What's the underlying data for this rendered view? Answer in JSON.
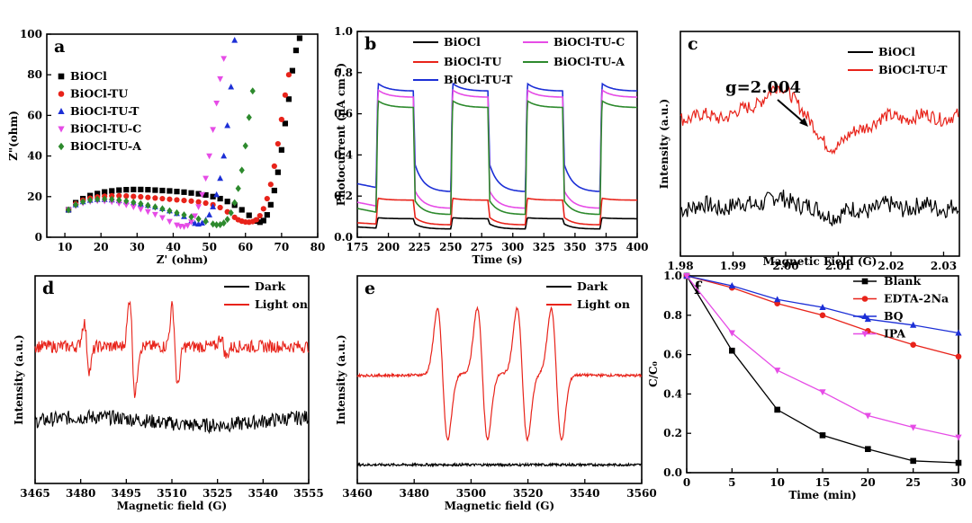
{
  "chart_data": [
    {
      "id": "a",
      "type": "scatter",
      "panel_label": "a",
      "xlabel": "Z' (ohm)",
      "ylabel": "Z\"(ohm)",
      "xlim": [
        5,
        80
      ],
      "ylim": [
        0,
        100
      ],
      "xticks": [
        10,
        20,
        30,
        40,
        50,
        60,
        70,
        80
      ],
      "yticks": [
        0,
        20,
        40,
        60,
        80,
        100
      ],
      "legend_position": "top-left",
      "series": [
        {
          "name": "BiOCl",
          "color": "#000000",
          "marker": "square",
          "x": [
            11,
            13,
            15,
            17,
            19,
            21,
            23,
            25,
            27,
            29,
            31,
            33,
            35,
            37,
            39,
            41,
            43,
            45,
            47,
            49,
            51,
            53,
            55,
            57,
            59,
            61,
            63,
            64,
            65,
            66,
            67,
            68,
            69,
            70,
            71,
            72,
            73,
            74,
            75
          ],
          "y": [
            13.5,
            17,
            19,
            20.5,
            21.5,
            22.3,
            22.8,
            23.2,
            23.4,
            23.5,
            23.5,
            23.4,
            23.2,
            23,
            22.8,
            22.5,
            22.2,
            21.8,
            21.4,
            20.8,
            20,
            19,
            17.6,
            15.8,
            13.5,
            10.8,
            8,
            7.4,
            8.2,
            11,
            16,
            23,
            32,
            43,
            56,
            68,
            82,
            92,
            98
          ]
        },
        {
          "name": "BiOCl-TU",
          "color": "#e8231a",
          "marker": "circle",
          "x": [
            11,
            13,
            15,
            17,
            19,
            21,
            23,
            25,
            27,
            29,
            31,
            33,
            35,
            37,
            39,
            41,
            43,
            45,
            47,
            49,
            51,
            53,
            55,
            57,
            58,
            59,
            60,
            61,
            62,
            63,
            64,
            65,
            66,
            67,
            68,
            69,
            70,
            71,
            72
          ],
          "y": [
            13.5,
            16.5,
            18.2,
            19.2,
            19.8,
            20.2,
            20.4,
            20.4,
            20.3,
            20.1,
            19.9,
            19.6,
            19.3,
            19,
            18.7,
            18.4,
            18.1,
            17.8,
            17.4,
            16.8,
            16,
            14.6,
            12.5,
            9.8,
            8.6,
            7.9,
            7.5,
            7.4,
            7.7,
            8.6,
            10.6,
            14,
            19,
            26,
            35,
            46,
            58,
            70,
            80
          ]
        },
        {
          "name": "BiOCl-TU-T",
          "color": "#1c2fd6",
          "marker": "triangle-up",
          "x": [
            11,
            13,
            15,
            17,
            19,
            21,
            23,
            25,
            27,
            29,
            31,
            33,
            35,
            37,
            39,
            41,
            43,
            45,
            46,
            47,
            48,
            49,
            50,
            51,
            52,
            53,
            54,
            55,
            56,
            57
          ],
          "y": [
            13.5,
            16,
            17.5,
            18.2,
            18.6,
            18.6,
            18.4,
            18,
            17.5,
            17,
            16.4,
            15.7,
            15,
            14.1,
            13,
            11.7,
            10.2,
            8,
            6.8,
            6.5,
            7,
            8.5,
            11,
            15,
            21,
            29,
            40,
            55,
            74,
            97
          ]
        },
        {
          "name": "BiOCl-TU-C",
          "color": "#e64ce6",
          "marker": "triangle-down",
          "x": [
            11,
            13,
            15,
            17,
            19,
            21,
            23,
            25,
            27,
            29,
            31,
            33,
            35,
            37,
            39,
            41,
            42,
            43,
            44,
            45,
            46,
            47,
            48,
            49,
            50,
            51,
            52,
            53,
            54
          ],
          "y": [
            13.5,
            15.5,
            16.8,
            17.6,
            17.9,
            17.8,
            17.4,
            16.7,
            15.9,
            14.9,
            13.8,
            12.6,
            11.2,
            9.6,
            7.8,
            6,
            5.4,
            5.2,
            5.8,
            7.5,
            10.5,
            15,
            21,
            29,
            40,
            53,
            66,
            78,
            88
          ]
        },
        {
          "name": "BiOCl-TU-A",
          "color": "#2d8a2d",
          "marker": "diamond",
          "x": [
            11,
            13,
            15,
            17,
            19,
            21,
            23,
            25,
            27,
            29,
            31,
            33,
            35,
            37,
            39,
            41,
            43,
            45,
            47,
            49,
            51,
            52,
            53,
            54,
            55,
            56,
            57,
            58,
            59,
            60,
            61,
            62
          ],
          "y": [
            13.5,
            16,
            17.5,
            18.3,
            18.7,
            18.8,
            18.7,
            18.3,
            17.8,
            17.2,
            16.5,
            15.7,
            14.9,
            14,
            13,
            12,
            11,
            10,
            9,
            7.8,
            6.5,
            6.1,
            6.2,
            7,
            8.8,
            12,
            17,
            24,
            33,
            45,
            59,
            72
          ]
        }
      ]
    },
    {
      "id": "b",
      "type": "line",
      "panel_label": "b",
      "xlabel": "Time (s)",
      "ylabel": "Photocurrent (μA cm⁻²)",
      "xlim": [
        175,
        400
      ],
      "ylim": [
        0,
        1.0
      ],
      "xticks": [
        175,
        200,
        225,
        250,
        275,
        300,
        325,
        350,
        375,
        400
      ],
      "yticks": [
        0.0,
        0.2,
        0.4,
        0.6,
        0.8,
        1.0
      ],
      "legend_position": "top",
      "light_on_intervals": [
        [
          190,
          220
        ],
        [
          250,
          280
        ],
        [
          310,
          340
        ],
        [
          370,
          400
        ]
      ],
      "series": [
        {
          "name": "BiOCl",
          "color": "#000000",
          "on": 0.09,
          "dark": 0.04,
          "start": 0.05
        },
        {
          "name": "BiOCl-TU",
          "color": "#e8231a",
          "on": 0.18,
          "dark": 0.06,
          "start": 0.07
        },
        {
          "name": "BiOCl-TU-T",
          "color": "#1c2fd6",
          "on": 0.71,
          "dark": 0.22,
          "start": 0.26
        },
        {
          "name": "BiOCl-TU-C",
          "color": "#e64ce6",
          "on": 0.68,
          "dark": 0.14,
          "start": 0.17
        },
        {
          "name": "BiOCl-TU-A",
          "color": "#2d8a2d",
          "on": 0.63,
          "dark": 0.11,
          "start": 0.14
        }
      ]
    },
    {
      "id": "c",
      "type": "line",
      "panel_label": "c",
      "xlabel": "Magnetic Field (G)",
      "ylabel": "Intensity (a.u.)",
      "xlim": [
        1.98,
        2.033
      ],
      "ylim": [
        0,
        1
      ],
      "xticks": [
        1.98,
        1.99,
        2.0,
        2.01,
        2.02,
        2.03
      ],
      "legend_position": "top-right",
      "annotation": "g=2.004",
      "series": [
        {
          "name": "BiOCl",
          "color": "#000000",
          "offset": 0.22,
          "amp": 0.035,
          "noise": 0.08
        },
        {
          "name": "BiOCl-TU-T",
          "color": "#e8231a",
          "offset": 0.62,
          "amp": 0.13,
          "noise": 0.06
        }
      ]
    },
    {
      "id": "d",
      "type": "line",
      "panel_label": "d",
      "xlabel": "Magnetic field (G)",
      "ylabel": "Intensity (a.u.)",
      "xlim": [
        3465,
        3555
      ],
      "ylim": [
        0,
        1
      ],
      "xticks": [
        3465,
        3480,
        3495,
        3510,
        3525,
        3540,
        3555
      ],
      "legend_position": "top-right",
      "series": [
        {
          "name": "Dark",
          "color": "#000000",
          "offset": 0.3,
          "noise": 0.07
        },
        {
          "name": "Light on",
          "color": "#e8231a",
          "offset": 0.66,
          "noise": 0.06
        }
      ]
    },
    {
      "id": "e",
      "type": "line",
      "panel_label": "e",
      "xlabel": "Magnetic field (G)",
      "ylabel": "Intensity (a.u.)",
      "xlim": [
        3460,
        3560
      ],
      "ylim": [
        0,
        1
      ],
      "xticks": [
        3460,
        3480,
        3500,
        3520,
        3540,
        3560
      ],
      "legend_position": "top-right",
      "series": [
        {
          "name": "Dark",
          "color": "#000000",
          "offset": 0.09
        },
        {
          "name": "Light on",
          "color": "#e8231a",
          "offset": 0.52
        }
      ]
    },
    {
      "id": "f",
      "type": "line",
      "panel_label": "f",
      "xlabel": "Time (min)",
      "ylabel": "C/C₀",
      "xlim": [
        0,
        30
      ],
      "ylim": [
        0,
        1.0
      ],
      "xticks": [
        0,
        5,
        10,
        15,
        20,
        25,
        30
      ],
      "yticks": [
        0.0,
        0.2,
        0.4,
        0.6,
        0.8,
        1.0
      ],
      "legend_position": "top-right",
      "x": [
        0,
        5,
        10,
        15,
        20,
        25,
        30
      ],
      "series": [
        {
          "name": "Blank",
          "color": "#000000",
          "marker": "square",
          "values": [
            1.0,
            0.62,
            0.32,
            0.19,
            0.12,
            0.06,
            0.05
          ]
        },
        {
          "name": "EDTA-2Na",
          "color": "#e8231a",
          "marker": "circle",
          "values": [
            1.0,
            0.94,
            0.86,
            0.8,
            0.72,
            0.65,
            0.59
          ]
        },
        {
          "name": "BQ",
          "color": "#1c2fd6",
          "marker": "triangle-up",
          "values": [
            1.0,
            0.95,
            0.88,
            0.84,
            0.78,
            0.75,
            0.71
          ]
        },
        {
          "name": "IPA",
          "color": "#e64ce6",
          "marker": "triangle-down",
          "values": [
            1.0,
            0.71,
            0.52,
            0.41,
            0.29,
            0.23,
            0.18
          ]
        }
      ]
    }
  ]
}
